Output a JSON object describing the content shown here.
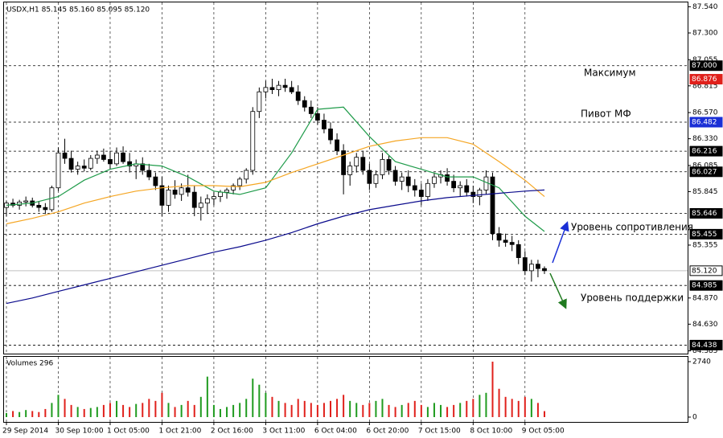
{
  "chart_data": {
    "type": "candlestick",
    "title": "USDX,H1  85.145 85.160 85.095 85.120",
    "ylim": [
      84.36,
      87.58
    ],
    "yticks": [
      {
        "value": 87.54,
        "label": "87.540"
      },
      {
        "value": 87.3,
        "label": "87.300"
      },
      {
        "value": 87.055,
        "label": "87.055"
      },
      {
        "value": 86.815,
        "label": "86.815"
      },
      {
        "value": 86.57,
        "label": "86.570"
      },
      {
        "value": 86.33,
        "label": "86.330"
      },
      {
        "value": 86.085,
        "label": "86.085"
      },
      {
        "value": 85.845,
        "label": "85.845"
      },
      {
        "value": 85.355,
        "label": "85.355"
      },
      {
        "value": 84.87,
        "label": "84.870"
      },
      {
        "value": 84.63,
        "label": "84.630"
      },
      {
        "value": 84.385,
        "label": "84.385"
      }
    ],
    "x_labels": [
      "29 Sep 2014",
      "30 Sep 10:00",
      "1 Oct 05:00",
      "1 Oct 21:00",
      "2 Oct 16:00",
      "3 Oct 11:00",
      "6 Oct 04:00",
      "6 Oct 20:00",
      "7 Oct 15:00",
      "8 Oct 10:00",
      "9 Oct 05:00"
    ],
    "grid": true,
    "up_color": "#ffffff",
    "down_color": "#000000",
    "candles": [
      [
        85.7,
        85.76,
        85.62,
        85.74
      ],
      [
        85.74,
        85.78,
        85.7,
        85.72
      ],
      [
        85.72,
        85.77,
        85.68,
        85.75
      ],
      [
        85.75,
        85.8,
        85.71,
        85.76
      ],
      [
        85.76,
        85.79,
        85.7,
        85.72
      ],
      [
        85.72,
        85.76,
        85.66,
        85.7
      ],
      [
        85.7,
        85.74,
        85.64,
        85.68
      ],
      [
        85.68,
        85.9,
        85.66,
        85.88
      ],
      [
        85.88,
        86.25,
        85.85,
        86.2
      ],
      [
        86.2,
        86.33,
        86.1,
        86.15
      ],
      [
        86.15,
        86.22,
        86.02,
        86.05
      ],
      [
        86.05,
        86.12,
        86.0,
        86.08
      ],
      [
        86.08,
        86.14,
        86.03,
        86.06
      ],
      [
        86.06,
        86.18,
        86.04,
        86.15
      ],
      [
        86.15,
        86.22,
        86.1,
        86.18
      ],
      [
        86.18,
        86.24,
        86.12,
        86.14
      ],
      [
        86.14,
        86.22,
        86.05,
        86.1
      ],
      [
        86.1,
        86.25,
        86.08,
        86.2
      ],
      [
        86.2,
        86.26,
        86.1,
        86.12
      ],
      [
        86.12,
        86.2,
        86.02,
        86.08
      ],
      [
        86.08,
        86.14,
        85.96,
        86.1
      ],
      [
        86.1,
        86.16,
        86.0,
        86.04
      ],
      [
        86.04,
        86.1,
        85.95,
        85.98
      ],
      [
        85.98,
        86.02,
        85.86,
        85.9
      ],
      [
        85.9,
        85.98,
        85.62,
        85.72
      ],
      [
        85.72,
        85.9,
        85.66,
        85.86
      ],
      [
        85.86,
        85.95,
        85.78,
        85.82
      ],
      [
        85.82,
        85.92,
        85.76,
        85.88
      ],
      [
        85.88,
        86.0,
        85.8,
        85.84
      ],
      [
        85.84,
        85.9,
        85.62,
        85.7
      ],
      [
        85.7,
        85.8,
        85.58,
        85.74
      ],
      [
        85.74,
        85.82,
        85.64,
        85.78
      ],
      [
        85.78,
        85.84,
        85.72,
        85.8
      ],
      [
        85.8,
        85.86,
        85.75,
        85.84
      ],
      [
        85.84,
        85.88,
        85.78,
        85.86
      ],
      [
        85.86,
        85.92,
        85.82,
        85.9
      ],
      [
        85.9,
        85.98,
        85.86,
        85.96
      ],
      [
        85.96,
        86.06,
        85.92,
        86.04
      ],
      [
        86.04,
        86.62,
        86.0,
        86.58
      ],
      [
        86.58,
        86.8,
        86.52,
        86.76
      ],
      [
        86.76,
        86.86,
        86.7,
        86.8
      ],
      [
        86.8,
        86.88,
        86.74,
        86.78
      ],
      [
        86.78,
        86.86,
        86.72,
        86.82
      ],
      [
        86.82,
        86.88,
        86.76,
        86.8
      ],
      [
        86.8,
        86.86,
        86.74,
        86.76
      ],
      [
        86.76,
        86.82,
        86.64,
        86.68
      ],
      [
        86.68,
        86.72,
        86.58,
        86.62
      ],
      [
        86.62,
        86.68,
        86.52,
        86.56
      ],
      [
        86.56,
        86.62,
        86.46,
        86.5
      ],
      [
        86.5,
        86.56,
        86.38,
        86.42
      ],
      [
        86.42,
        86.48,
        86.28,
        86.32
      ],
      [
        86.32,
        86.38,
        86.18,
        86.22
      ],
      [
        86.22,
        86.28,
        85.82,
        86.0
      ],
      [
        86.0,
        86.12,
        85.9,
        86.08
      ],
      [
        86.08,
        86.2,
        86.02,
        86.16
      ],
      [
        86.16,
        86.22,
        86.0,
        86.04
      ],
      [
        86.04,
        86.1,
        85.86,
        85.92
      ],
      [
        85.92,
        86.04,
        85.88,
        86.0
      ],
      [
        86.0,
        86.2,
        85.96,
        86.14
      ],
      [
        86.14,
        86.18,
        86.0,
        86.04
      ],
      [
        86.04,
        86.08,
        85.9,
        85.94
      ],
      [
        85.94,
        86.02,
        85.86,
        85.98
      ],
      [
        85.98,
        86.04,
        85.84,
        85.9
      ],
      [
        85.9,
        85.96,
        85.8,
        85.86
      ],
      [
        85.86,
        85.92,
        85.72,
        85.8
      ],
      [
        85.8,
        85.96,
        85.76,
        85.92
      ],
      [
        85.92,
        86.02,
        85.88,
        85.98
      ],
      [
        85.98,
        86.04,
        85.92,
        86.0
      ],
      [
        86.0,
        86.06,
        85.9,
        85.94
      ],
      [
        85.94,
        86.0,
        85.84,
        85.88
      ],
      [
        85.88,
        85.94,
        85.8,
        85.9
      ],
      [
        85.9,
        85.96,
        85.8,
        85.84
      ],
      [
        85.84,
        85.9,
        85.74,
        85.8
      ],
      [
        85.8,
        85.88,
        85.72,
        85.86
      ],
      [
        85.86,
        86.04,
        85.82,
        85.98
      ],
      [
        85.98,
        86.02,
        85.4,
        85.46
      ],
      [
        85.46,
        85.52,
        85.34,
        85.4
      ],
      [
        85.4,
        85.46,
        85.34,
        85.38
      ],
      [
        85.38,
        85.44,
        85.3,
        85.36
      ],
      [
        85.36,
        85.4,
        85.18,
        85.24
      ],
      [
        85.24,
        85.3,
        85.08,
        85.12
      ],
      [
        85.12,
        85.22,
        85.02,
        85.18
      ],
      [
        85.18,
        85.22,
        85.06,
        85.14
      ],
      [
        85.14,
        85.16,
        85.09,
        85.12
      ]
    ],
    "x": [
      0,
      4,
      8,
      12,
      16,
      20,
      24,
      28,
      32,
      36,
      40,
      44,
      48,
      52,
      56,
      60,
      64,
      68,
      72,
      76,
      80,
      83
    ],
    "series": [
      {
        "color": "#1f9b4a",
        "values": [
          85.72,
          85.74,
          85.8,
          85.95,
          86.05,
          86.1,
          86.08,
          85.98,
          85.85,
          85.82,
          85.88,
          86.2,
          86.6,
          86.62,
          86.35,
          86.12,
          86.05,
          85.98,
          85.98,
          85.88,
          85.62,
          85.48
        ]
      },
      {
        "color": "#f5a623",
        "values": [
          85.55,
          85.6,
          85.66,
          85.74,
          85.8,
          85.85,
          85.88,
          85.9,
          85.9,
          85.89,
          85.93,
          86.02,
          86.1,
          86.18,
          86.26,
          86.31,
          86.34,
          86.34,
          86.28,
          86.12,
          85.95,
          85.8
        ]
      },
      {
        "color": "#0a0a8c",
        "values": [
          84.82,
          84.87,
          84.93,
          84.99,
          85.05,
          85.11,
          85.17,
          85.23,
          85.29,
          85.34,
          85.4,
          85.47,
          85.55,
          85.62,
          85.68,
          85.72,
          85.76,
          85.79,
          85.81,
          85.83,
          85.85,
          85.86
        ]
      }
    ],
    "levels": [
      {
        "value": 87.0,
        "label": "87.000",
        "color": "#000000",
        "line": "dash"
      },
      {
        "value": 86.876,
        "label": "86.876",
        "color": "#e0201b",
        "line": "none"
      },
      {
        "value": 86.482,
        "label": "86.482",
        "color": "#1a2fd6",
        "line": "dash"
      },
      {
        "value": 86.216,
        "label": "86.216",
        "color": "#000000",
        "line": "dash"
      },
      {
        "value": 86.027,
        "label": "86.027",
        "color": "#000000",
        "line": "dash"
      },
      {
        "value": 85.646,
        "label": "85.646",
        "color": "#000000",
        "line": "dash"
      },
      {
        "value": 85.455,
        "label": "85.455",
        "color": "#000000",
        "line": "dash"
      },
      {
        "value": 85.12,
        "label": "85.120",
        "color": "#ffffff",
        "line": "solid"
      },
      {
        "value": 84.985,
        "label": "84.985",
        "color": "#000000",
        "line": "dash"
      },
      {
        "value": 84.438,
        "label": "84.438",
        "color": "#000000",
        "line": "dash"
      }
    ],
    "annotations": [
      "Максимум",
      "Пивот МФ",
      "Уровень сопротивления",
      "Уровень поддержки"
    ],
    "volume": {
      "title": "Volumes 296",
      "ylim": [
        0,
        2740
      ],
      "yticks": [
        0,
        2740
      ],
      "values": [
        200,
        300,
        250,
        350,
        300,
        250,
        400,
        700,
        1100,
        900,
        600,
        500,
        400,
        450,
        500,
        600,
        700,
        800,
        600,
        500,
        650,
        700,
        900,
        800,
        1200,
        700,
        500,
        600,
        800,
        600,
        1000,
        2000,
        600,
        400,
        500,
        600,
        700,
        900,
        1900,
        1600,
        1200,
        1000,
        800,
        700,
        600,
        900,
        800,
        700,
        600,
        700,
        800,
        900,
        1100,
        800,
        700,
        600,
        700,
        800,
        900,
        600,
        500,
        600,
        700,
        800,
        600,
        500,
        700,
        600,
        500,
        600,
        700,
        800,
        900,
        1100,
        1200,
        2740,
        1400,
        1000,
        900,
        800,
        1000,
        900,
        700,
        296
      ]
    }
  }
}
